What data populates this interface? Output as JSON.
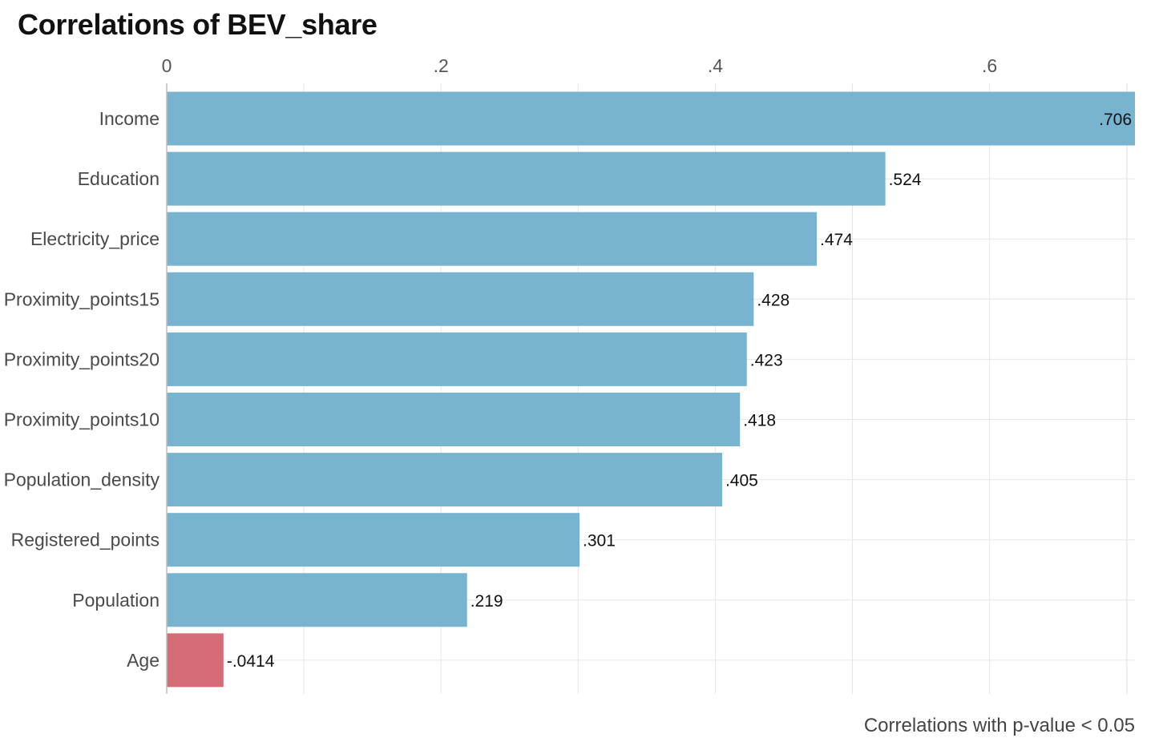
{
  "chart_data": {
    "type": "bar",
    "orientation": "horizontal",
    "title": "Correlations of BEV_share",
    "caption": "Correlations with p-value < 0.05",
    "categories": [
      "Income",
      "Education",
      "Electricity_price",
      "Proximity_points15",
      "Proximity_points20",
      "Proximity_points10",
      "Population_density",
      "Registered_points",
      "Population",
      "Age"
    ],
    "values": [
      0.706,
      0.524,
      0.474,
      0.428,
      0.423,
      0.418,
      0.405,
      0.301,
      0.219,
      -0.0414
    ],
    "value_labels": [
      ".706",
      ".524",
      ".474",
      ".428",
      ".423",
      ".418",
      ".405",
      ".301",
      ".219",
      "-.0414"
    ],
    "bar_magnitude": "absolute",
    "x_ticks": [
      0,
      0.2,
      0.4,
      0.6
    ],
    "x_tick_labels": [
      "0",
      ".2",
      ".4",
      ".6"
    ],
    "xlim": [
      0,
      0.706
    ],
    "xlabel": "",
    "ylabel": "",
    "x_axis_position": "top",
    "grid": true,
    "legend": "none",
    "colors": {
      "positive": "#78b4d0",
      "negative": "#d66b78"
    }
  }
}
